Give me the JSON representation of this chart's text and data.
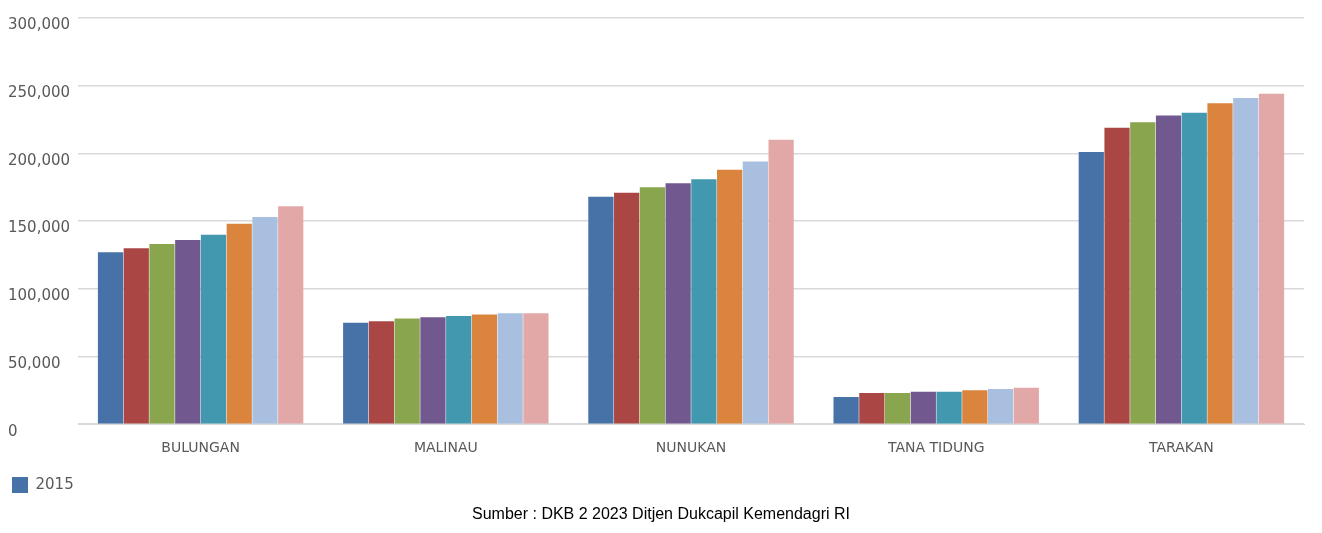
{
  "chart_data": {
    "type": "bar",
    "categories": [
      "BULUNGAN",
      "MALINAU",
      "NUNUKAN",
      "TANA TIDUNG",
      "TARAKAN"
    ],
    "series": [
      {
        "name": "2015",
        "color": "#4672a8",
        "values": [
          127000,
          75000,
          168000,
          20000,
          201000
        ]
      },
      {
        "color": "#aa4744",
        "values": [
          130000,
          76000,
          171000,
          23000,
          219000
        ]
      },
      {
        "color": "#89a54e",
        "values": [
          133000,
          78000,
          175000,
          23000,
          223000
        ]
      },
      {
        "color": "#71588f",
        "values": [
          136000,
          79000,
          178000,
          24000,
          228000
        ]
      },
      {
        "color": "#4198af",
        "values": [
          140000,
          80000,
          181000,
          24000,
          230000
        ]
      },
      {
        "color": "#db843d",
        "values": [
          148000,
          81000,
          188000,
          25000,
          237000
        ]
      },
      {
        "color": "#a9bfdf",
        "values": [
          153000,
          82000,
          194000,
          26000,
          241000
        ]
      },
      {
        "color": "#e2a8a7",
        "values": [
          161000,
          82000,
          210000,
          27000,
          244000
        ]
      }
    ],
    "ylim": [
      0,
      300000
    ],
    "yticks": [
      0,
      {
        "value": 50000,
        "label": "50,000"
      },
      {
        "value": 100000,
        "label": "100,000"
      },
      {
        "value": 150000,
        "label": "150,000"
      },
      {
        "value": 200000,
        "label": "200,000"
      },
      {
        "value": 250000,
        "label": "250,000"
      },
      {
        "value": 300000,
        "label": "300,000"
      }
    ],
    "grid": "y",
    "legend": "bottom",
    "annotations": [
      "Sumber : DKB 2 2023 Ditjen Dukcapil Kemendagri RI"
    ]
  }
}
